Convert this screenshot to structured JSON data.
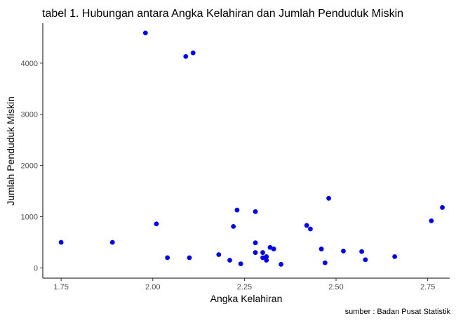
{
  "chart_data": {
    "type": "scatter",
    "title": "tabel 1. Hubungan antara Angka Kelahiran dan Jumlah Penduduk Miskin",
    "xlabel": "Angka Kelahiran",
    "ylabel": "Jumlah Penduduk Miskin",
    "caption": "sumber : Badan Pusat Statistik",
    "xlim": [
      1.7,
      2.81
    ],
    "ylim": [
      -200,
      4780
    ],
    "x_ticks": [
      1.75,
      2.0,
      2.25,
      2.5,
      2.75
    ],
    "x_tick_labels": [
      "1.75",
      "2.00",
      "2.25",
      "2.50",
      "2.75"
    ],
    "y_ticks": [
      0,
      1000,
      2000,
      3000,
      4000
    ],
    "y_tick_labels": [
      "0",
      "1000",
      "2000",
      "3000",
      "4000"
    ],
    "grid": false,
    "point_color": "#0000ff",
    "points": [
      {
        "x": 1.75,
        "y": 500
      },
      {
        "x": 1.89,
        "y": 500
      },
      {
        "x": 1.98,
        "y": 4590
      },
      {
        "x": 2.01,
        "y": 860
      },
      {
        "x": 2.04,
        "y": 200
      },
      {
        "x": 2.09,
        "y": 4130
      },
      {
        "x": 2.1,
        "y": 200
      },
      {
        "x": 2.11,
        "y": 4200
      },
      {
        "x": 2.18,
        "y": 260
      },
      {
        "x": 2.21,
        "y": 150
      },
      {
        "x": 2.22,
        "y": 810
      },
      {
        "x": 2.23,
        "y": 1130
      },
      {
        "x": 2.24,
        "y": 80
      },
      {
        "x": 2.28,
        "y": 1100
      },
      {
        "x": 2.28,
        "y": 490
      },
      {
        "x": 2.28,
        "y": 300
      },
      {
        "x": 2.3,
        "y": 300
      },
      {
        "x": 2.3,
        "y": 200
      },
      {
        "x": 2.31,
        "y": 220
      },
      {
        "x": 2.31,
        "y": 150
      },
      {
        "x": 2.32,
        "y": 400
      },
      {
        "x": 2.33,
        "y": 370
      },
      {
        "x": 2.35,
        "y": 70
      },
      {
        "x": 2.42,
        "y": 830
      },
      {
        "x": 2.43,
        "y": 760
      },
      {
        "x": 2.46,
        "y": 370
      },
      {
        "x": 2.47,
        "y": 100
      },
      {
        "x": 2.48,
        "y": 1360
      },
      {
        "x": 2.52,
        "y": 330
      },
      {
        "x": 2.57,
        "y": 320
      },
      {
        "x": 2.58,
        "y": 160
      },
      {
        "x": 2.66,
        "y": 220
      },
      {
        "x": 2.76,
        "y": 920
      },
      {
        "x": 2.79,
        "y": 1180
      }
    ]
  }
}
